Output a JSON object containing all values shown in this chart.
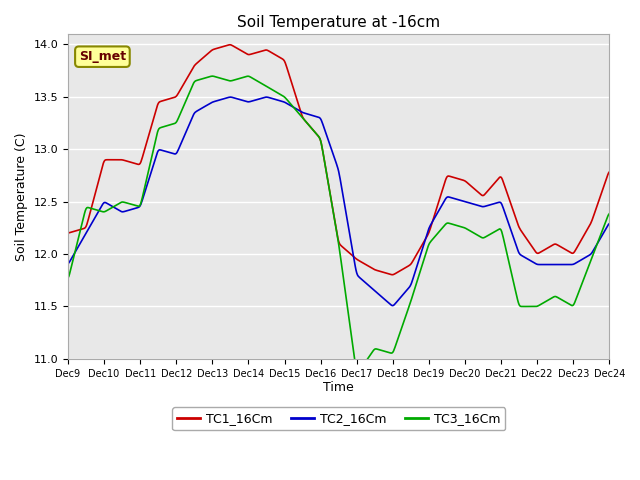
{
  "title": "Soil Temperature at -16cm",
  "xlabel": "Time",
  "ylabel": "Soil Temperature (C)",
  "ylim": [
    11.0,
    14.1
  ],
  "xlim": [
    0,
    360
  ],
  "bg_color": "#e8e8e8",
  "fig_color": "#ffffff",
  "grid_color": "#ffffff",
  "annotation_text": "SI_met",
  "annotation_bg": "#ffff99",
  "annotation_border": "#888800",
  "tc1_color": "#cc0000",
  "tc2_color": "#0000cc",
  "tc3_color": "#00aa00",
  "legend_labels": [
    "TC1_16Cm",
    "TC2_16Cm",
    "TC3_16Cm"
  ],
  "xtick_labels": [
    "Dec 9",
    "Dec 10",
    "Dec 11",
    "Dec 12",
    "Dec 13",
    "Dec 14",
    "Dec 15",
    "Dec 16",
    "Dec 17",
    "Dec 18",
    "Dec 19",
    "Dec 20",
    "Dec 21",
    "Dec 22",
    "Dec 23",
    "Dec 24"
  ],
  "ytick_values": [
    11.0,
    11.5,
    12.0,
    12.5,
    13.0,
    13.5,
    14.0
  ],
  "figsize": [
    6.4,
    4.8
  ],
  "dpi": 100
}
